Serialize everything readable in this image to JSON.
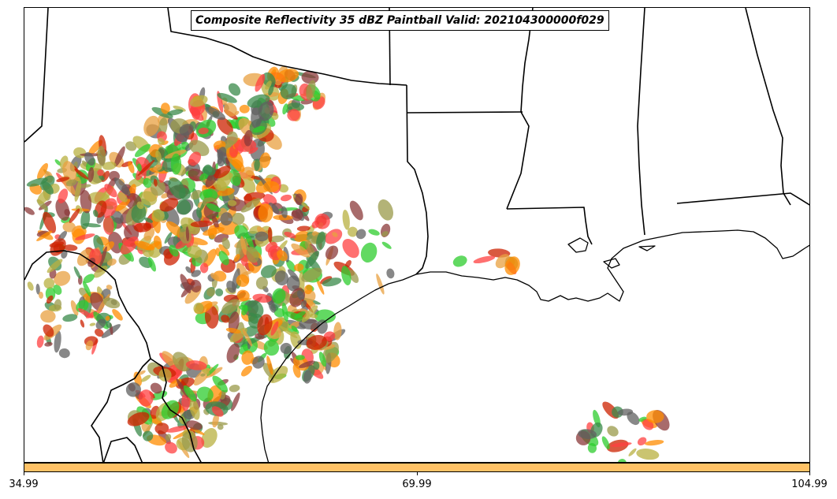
{
  "title": "Composite Reflectivity 35 dBZ Paintball Valid: 202104300000f029",
  "colorbar": {
    "color": "#FFC266",
    "ticks": [
      "34.99",
      "69.99",
      "104.99"
    ]
  },
  "paint_colors": [
    "#FF8C00",
    "#E8A040",
    "#FF4040",
    "#CC2200",
    "#8B3A3A",
    "#9A9A4A",
    "#B8B040",
    "#2ECC2E",
    "#3A8A4A",
    "#606060"
  ]
}
